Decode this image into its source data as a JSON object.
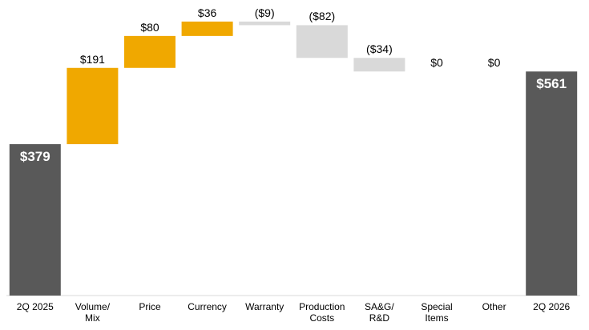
{
  "chart_data": {
    "type": "waterfall",
    "categories": [
      "2Q 2025",
      "Volume/\nMix",
      "Price",
      "Currency",
      "Warranty",
      "Production\nCosts",
      "SA&G/\nR&D",
      "Special\nItems",
      "Other",
      "2Q 2026"
    ],
    "values": [
      379,
      191,
      80,
      36,
      -9,
      -82,
      -34,
      0,
      0,
      561
    ],
    "value_labels": [
      "$379",
      "$191",
      "$80",
      "$36",
      "($9)",
      "($82)",
      "($34)",
      "$0",
      "$0",
      "$561"
    ],
    "totals": [
      true,
      false,
      false,
      false,
      false,
      false,
      false,
      false,
      false,
      true
    ],
    "total_color": "#595959",
    "increase_color": "#f0a800",
    "decrease_color": "#d9d9d9",
    "ylim": [
      0,
      740
    ]
  }
}
